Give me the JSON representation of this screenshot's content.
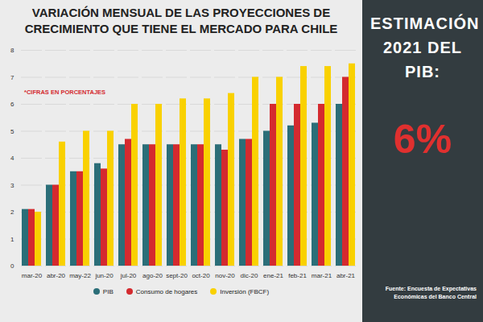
{
  "chart_data": {
    "type": "bar",
    "title": "VARIACIÓN MENSUAL DE LAS PROYECCIONES DE CRECIMIENTO QUE TIENE EL MERCADO PARA CHILE",
    "annotations": [
      "*CIFRAS EN PORCENTAJES"
    ],
    "categories": [
      "mar-20",
      "abr-20",
      "may-22",
      "jun-20",
      "jul-20",
      "ago-20",
      "sept-20",
      "oct-20",
      "nov-20",
      "dic-20",
      "ene-21",
      "feb-21",
      "mar-21",
      "abr-21"
    ],
    "series": [
      {
        "name": "PIB",
        "color": "#2b6e78",
        "values": [
          2.1,
          3.0,
          3.5,
          3.8,
          4.5,
          4.5,
          4.5,
          4.5,
          4.5,
          4.7,
          5.0,
          5.2,
          5.3,
          6.0
        ]
      },
      {
        "name": "Consumo de hogares",
        "color": "#d42a2f",
        "values": [
          2.1,
          3.0,
          3.5,
          3.6,
          4.7,
          4.5,
          4.5,
          4.5,
          4.3,
          4.7,
          6.0,
          6.0,
          6.0,
          7.0
        ]
      },
      {
        "name": "Inversión (FBCF)",
        "color": "#f9d100",
        "values": [
          2.0,
          4.6,
          5.0,
          5.0,
          6.0,
          6.0,
          6.2,
          6.2,
          6.4,
          7.0,
          7.0,
          7.4,
          7.4,
          7.5
        ]
      }
    ],
    "ylim": [
      0,
      8
    ],
    "yticks": [
      0,
      1,
      2,
      3,
      4,
      5,
      6,
      7,
      8
    ],
    "grid": true,
    "legend": "bottom",
    "side_panel": {
      "title": "ESTIMACIÓN 2021 DEL PIB:",
      "value": 6,
      "value_label": "6%"
    },
    "source": "Fuente: Encuesta de  Expectativas Económicas del Banco Central"
  }
}
